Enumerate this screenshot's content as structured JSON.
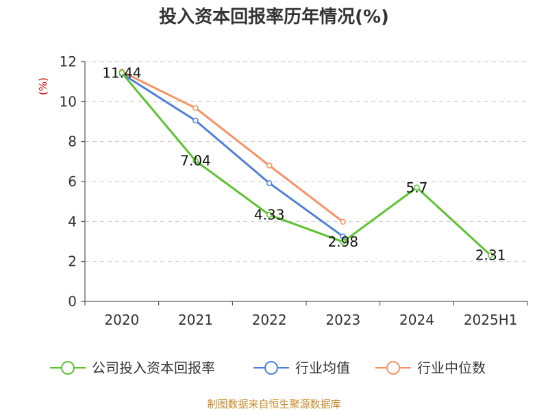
{
  "chart_data": {
    "type": "line",
    "title": "投入资本回报率历年情况(%)",
    "unit_label": "(%)",
    "categories": [
      "2020",
      "2021",
      "2022",
      "2023",
      "2024",
      "2025H1"
    ],
    "ylim": [
      0,
      12
    ],
    "yticks": [
      "0",
      "2",
      "4",
      "6",
      "8",
      "10",
      "12"
    ],
    "grid": true,
    "legend_position": "bottom",
    "series": [
      {
        "name": "公司投入资本回报率",
        "color": "#5cc22e",
        "values": [
          11.44,
          7.04,
          4.33,
          2.98,
          5.7,
          2.31
        ],
        "labels": [
          "11.44",
          "7.04",
          "4.33",
          "2.98",
          "5.7",
          "2.31"
        ]
      },
      {
        "name": "行业均值",
        "color": "#4e7fdb",
        "values": [
          11.4,
          9.05,
          5.92,
          3.25,
          null,
          null
        ]
      },
      {
        "name": "行业中位数",
        "color": "#f59264",
        "values": [
          11.5,
          9.68,
          6.8,
          3.98,
          null,
          null
        ]
      }
    ],
    "source": "制图数据来自恒生聚源数据库"
  }
}
